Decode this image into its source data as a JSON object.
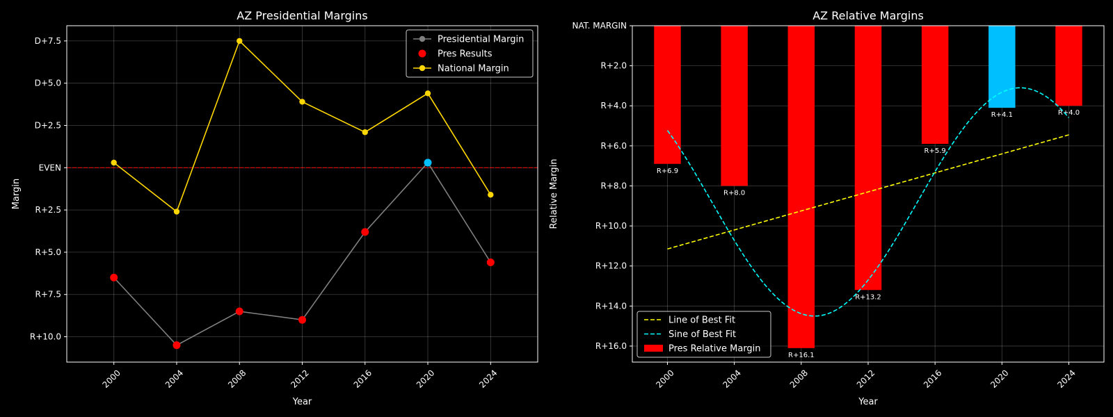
{
  "chart_data": [
    {
      "type": "line",
      "title": "AZ Presidential Margins",
      "xlabel": "Year",
      "ylabel": "Margin",
      "x": [
        2000,
        2004,
        2008,
        2012,
        2016,
        2020,
        2024
      ],
      "xlim": [
        1997,
        2027
      ],
      "ylim": [
        -11.5,
        8.4
      ],
      "y_ticks": [
        {
          "value": 7.5,
          "label": "D+7.5"
        },
        {
          "value": 5.0,
          "label": "D+5.0"
        },
        {
          "value": 2.5,
          "label": "D+2.5"
        },
        {
          "value": 0,
          "label": "EVEN"
        },
        {
          "value": -2.5,
          "label": "R+2.5"
        },
        {
          "value": -5.0,
          "label": "R+5.0"
        },
        {
          "value": -7.5,
          "label": "R+7.5"
        },
        {
          "value": -10.0,
          "label": "R+10.0"
        }
      ],
      "reference_line": {
        "value": 0,
        "color": "#ff0000"
      },
      "grid": true,
      "legend_position": "top-right",
      "series": [
        {
          "name": "Presidential Margin",
          "values": [
            -6.5,
            -10.5,
            -8.5,
            -9.0,
            -3.8,
            0.3,
            -5.6
          ],
          "color": "#808080",
          "style": "line"
        },
        {
          "name": "Pres Results",
          "values": [
            -6.5,
            -10.5,
            -8.5,
            -9.0,
            -3.8,
            0.3,
            -5.6
          ],
          "color": "#ff0000",
          "highlight_color": "#00bfff",
          "highlight_index": 5,
          "style": "points"
        },
        {
          "name": "National Margin",
          "values": [
            0.3,
            -2.6,
            7.5,
            3.9,
            2.1,
            4.4,
            -1.6
          ],
          "color": "#ffd700",
          "style": "line"
        }
      ]
    },
    {
      "type": "bar",
      "title": "AZ Relative Margins",
      "xlabel": "Year",
      "ylabel": "Relative Margin",
      "x": [
        2000,
        2004,
        2008,
        2012,
        2016,
        2020,
        2024
      ],
      "xlim": [
        1997.9,
        2026.1
      ],
      "ylim": [
        0,
        16.8
      ],
      "y_inverted": true,
      "y_ticks": [
        {
          "value": 0,
          "label": "NAT. MARGIN"
        },
        {
          "value": 2,
          "label": "R+2.0"
        },
        {
          "value": 4,
          "label": "R+4.0"
        },
        {
          "value": 6,
          "label": "R+6.0"
        },
        {
          "value": 8,
          "label": "R+8.0"
        },
        {
          "value": 10,
          "label": "R+10.0"
        },
        {
          "value": 12,
          "label": "R+12.0"
        },
        {
          "value": 14,
          "label": "R+14.0"
        },
        {
          "value": 16,
          "label": "R+16.0"
        }
      ],
      "grid": true,
      "legend_position": "bottom-left",
      "bars": {
        "name": "Pres Relative Margin",
        "values": [
          6.9,
          8.0,
          16.1,
          13.2,
          5.9,
          4.1,
          4.0
        ],
        "labels": [
          "R+6.9",
          "R+8.0",
          "R+16.1",
          "R+13.2",
          "R+5.9",
          "R+4.1",
          "R+4.0"
        ],
        "colors": [
          "#ff0000",
          "#ff0000",
          "#ff0000",
          "#ff0000",
          "#ff0000",
          "#00bfff",
          "#ff0000"
        ],
        "bar_width_years": 1.6
      },
      "best_fit_line": {
        "name": "Line of Best Fit",
        "x": [
          2000,
          2024
        ],
        "values": [
          11.15,
          5.45
        ],
        "color": "#ffff00"
      },
      "best_fit_sine": {
        "name": "Sine of Best Fit",
        "x_start": 2000,
        "x_end": 2024,
        "offset": 8.8,
        "amplitude": 5.7,
        "period": 24.6,
        "min_at": 2021.1,
        "color": "#00ffff"
      }
    }
  ]
}
